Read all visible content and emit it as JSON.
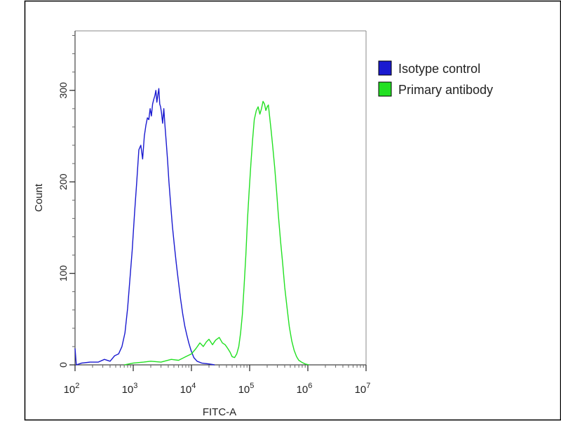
{
  "chart_data": {
    "type": "line",
    "title": "",
    "xlabel": "FITC-A",
    "ylabel": "Count",
    "xscale": "log",
    "xlim": [
      100,
      10000000
    ],
    "ylim": [
      0,
      365
    ],
    "grid": false,
    "legend_position": "top-right",
    "x_ticks": [
      {
        "value": 100,
        "base": "10",
        "exp": "2"
      },
      {
        "value": 1000,
        "base": "10",
        "exp": "3"
      },
      {
        "value": 10000,
        "base": "10",
        "exp": "4"
      },
      {
        "value": 100000,
        "base": "10",
        "exp": "5"
      },
      {
        "value": 1000000,
        "base": "10",
        "exp": "6"
      },
      {
        "value": 10000000,
        "base": "10",
        "exp": "7"
      }
    ],
    "y_ticks": [
      {
        "value": 0,
        "label": "0"
      },
      {
        "value": 100,
        "label": "100"
      },
      {
        "value": 200,
        "label": "200"
      },
      {
        "value": 300,
        "label": "300"
      }
    ],
    "series": [
      {
        "name": "Isotype control",
        "color": "#1a1ad0",
        "points": [
          [
            100,
            18
          ],
          [
            105,
            0
          ],
          [
            130,
            2
          ],
          [
            180,
            3
          ],
          [
            250,
            3
          ],
          [
            320,
            6
          ],
          [
            400,
            4
          ],
          [
            480,
            10
          ],
          [
            560,
            12
          ],
          [
            640,
            20
          ],
          [
            720,
            35
          ],
          [
            800,
            62
          ],
          [
            880,
            95
          ],
          [
            960,
            125
          ],
          [
            1050,
            165
          ],
          [
            1150,
            200
          ],
          [
            1250,
            235
          ],
          [
            1350,
            240
          ],
          [
            1450,
            225
          ],
          [
            1550,
            250
          ],
          [
            1650,
            262
          ],
          [
            1750,
            270
          ],
          [
            1850,
            268
          ],
          [
            1950,
            280
          ],
          [
            2050,
            272
          ],
          [
            2150,
            285
          ],
          [
            2250,
            290
          ],
          [
            2350,
            294
          ],
          [
            2450,
            300
          ],
          [
            2550,
            287
          ],
          [
            2650,
            295
          ],
          [
            2750,
            302
          ],
          [
            2850,
            285
          ],
          [
            2950,
            282
          ],
          [
            3050,
            276
          ],
          [
            3200,
            264
          ],
          [
            3350,
            280
          ],
          [
            3500,
            262
          ],
          [
            3700,
            242
          ],
          [
            3900,
            222
          ],
          [
            4100,
            200
          ],
          [
            4400,
            175
          ],
          [
            4700,
            152
          ],
          [
            5100,
            130
          ],
          [
            5500,
            110
          ],
          [
            6000,
            90
          ],
          [
            6500,
            72
          ],
          [
            7100,
            55
          ],
          [
            7700,
            42
          ],
          [
            8300,
            33
          ],
          [
            9000,
            24
          ],
          [
            9800,
            16
          ],
          [
            11000,
            8
          ],
          [
            12500,
            4
          ],
          [
            15000,
            2
          ],
          [
            20000,
            1
          ],
          [
            25000,
            0
          ]
        ]
      },
      {
        "name": "Primary antibody",
        "color": "#22e022",
        "points": [
          [
            700,
            0
          ],
          [
            1000,
            2
          ],
          [
            1500,
            3
          ],
          [
            2000,
            4
          ],
          [
            3000,
            3
          ],
          [
            4500,
            6
          ],
          [
            6000,
            5
          ],
          [
            8000,
            9
          ],
          [
            10000,
            12
          ],
          [
            12000,
            18
          ],
          [
            14000,
            24
          ],
          [
            16000,
            20
          ],
          [
            18000,
            25
          ],
          [
            20000,
            28
          ],
          [
            23000,
            22
          ],
          [
            26000,
            27
          ],
          [
            30000,
            30
          ],
          [
            34000,
            24
          ],
          [
            38000,
            22
          ],
          [
            42000,
            18
          ],
          [
            46000,
            14
          ],
          [
            50000,
            9
          ],
          [
            55000,
            8
          ],
          [
            60000,
            12
          ],
          [
            65000,
            20
          ],
          [
            70000,
            35
          ],
          [
            75000,
            55
          ],
          [
            80000,
            85
          ],
          [
            86000,
            120
          ],
          [
            92000,
            160
          ],
          [
            98000,
            190
          ],
          [
            105000,
            220
          ],
          [
            112000,
            245
          ],
          [
            120000,
            268
          ],
          [
            130000,
            278
          ],
          [
            140000,
            282
          ],
          [
            150000,
            274
          ],
          [
            160000,
            280
          ],
          [
            170000,
            288
          ],
          [
            180000,
            285
          ],
          [
            190000,
            278
          ],
          [
            200000,
            282
          ],
          [
            210000,
            284
          ],
          [
            220000,
            272
          ],
          [
            235000,
            255
          ],
          [
            250000,
            238
          ],
          [
            270000,
            215
          ],
          [
            290000,
            190
          ],
          [
            310000,
            165
          ],
          [
            340000,
            135
          ],
          [
            370000,
            110
          ],
          [
            400000,
            85
          ],
          [
            440000,
            62
          ],
          [
            480000,
            42
          ],
          [
            530000,
            26
          ],
          [
            580000,
            16
          ],
          [
            640000,
            9
          ],
          [
            700000,
            5
          ],
          [
            780000,
            3
          ],
          [
            900000,
            1
          ],
          [
            1050000,
            0
          ]
        ]
      }
    ]
  }
}
